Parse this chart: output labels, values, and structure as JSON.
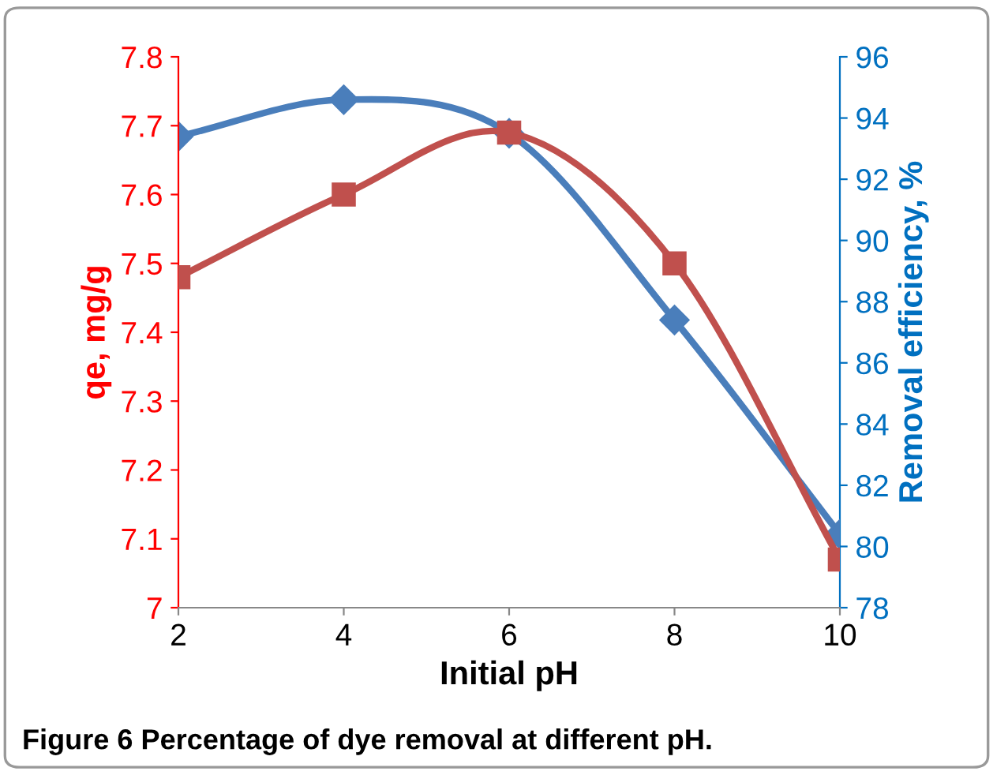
{
  "chart_data": {
    "type": "line",
    "xlabel": "Initial pH",
    "ylabel": "qe, mg/g",
    "y2label": "Removal efficiency, %",
    "annotations": [
      "Figure 6 Percentage of dye removal at different pH."
    ],
    "x": [
      2,
      4,
      6,
      8,
      10
    ],
    "series": [
      {
        "color": "#c0504d",
        "marker": "square",
        "values": [
          7.48,
          7.6,
          7.69,
          7.5,
          7.07
        ]
      },
      {
        "color": "#4a7ebb",
        "marker": "diamond",
        "axis": "y2",
        "values": [
          93.4,
          94.6,
          93.5,
          87.4,
          80.4
        ]
      }
    ],
    "xlim": [
      2,
      10
    ],
    "xticks": [
      2,
      4,
      6,
      8,
      10
    ],
    "ylim": [
      7,
      7.8
    ],
    "yticks": [
      7,
      7.1,
      7.2,
      7.3,
      7.4,
      7.5,
      7.6,
      7.7,
      7.8
    ],
    "y2lim": [
      78,
      96
    ],
    "y2ticks": [
      78,
      80,
      82,
      84,
      86,
      88,
      90,
      92,
      94,
      96
    ],
    "grid": false,
    "legend": false,
    "line_style": "solid"
  }
}
